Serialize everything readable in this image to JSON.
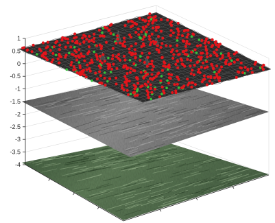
{
  "chart_data": {
    "type": "surface3d",
    "z_axis": {
      "ticks": [
        1,
        0.5,
        0,
        -0.5,
        -1,
        -1.5,
        -2,
        -2.5,
        -3,
        -3.5,
        -4
      ],
      "tick_labels": [
        "1",
        "0.5",
        "0",
        "-0.5",
        "-1",
        "-1.5",
        "-2",
        "-2.5",
        "-3",
        "-3.5",
        "-4"
      ],
      "zlim": [
        -4,
        1
      ]
    },
    "layers": [
      {
        "kind": "height-surface",
        "level": 0,
        "surface_color": "#2b2b2b",
        "peak_marker_color": "#e3151b",
        "valley_marker_color": "#35c13a"
      },
      {
        "kind": "grayscale-texture-plane",
        "level": -1.5,
        "color": "#7d7d7d"
      },
      {
        "kind": "color-texture-plane",
        "level": -4,
        "color": "#4e6a4c"
      }
    ],
    "grid": true,
    "box": true
  }
}
